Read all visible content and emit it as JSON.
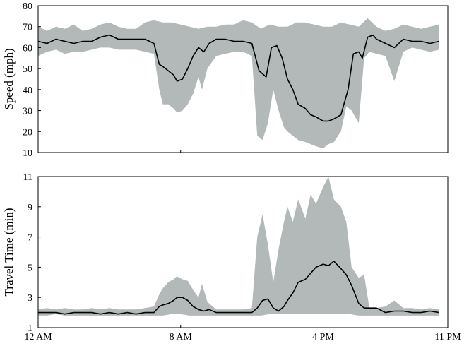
{
  "colors": {
    "band": "#b3b9b9",
    "line": "#000000",
    "axis": "#000000"
  },
  "x_tick_labels": [
    "12 AM",
    "8 AM",
    "4 PM",
    "11 PM"
  ],
  "chart_data": [
    {
      "type": "area",
      "ylabel": "Speed (mph)",
      "xlim": [
        0,
        23
      ],
      "ylim": [
        10,
        80
      ],
      "yticks": [
        10,
        20,
        30,
        40,
        50,
        60,
        70,
        80
      ],
      "grid": false,
      "series": [
        {
          "kind": "median",
          "x": [
            0,
            0.5,
            1,
            1.5,
            2,
            2.5,
            3,
            3.5,
            4,
            4.5,
            5,
            5.5,
            6,
            6.5,
            6.8,
            7,
            7.3,
            7.6,
            7.8,
            8.1,
            8.4,
            8.7,
            9,
            9.3,
            9.6,
            10,
            10.5,
            11,
            11.5,
            12,
            12.4,
            12.8,
            13.1,
            13.4,
            13.7,
            14,
            14.3,
            14.6,
            15,
            15.3,
            15.6,
            16,
            16.3,
            16.6,
            17,
            17.4,
            17.7,
            18,
            18.2,
            18.5,
            18.8,
            19,
            19.5,
            20,
            20.5,
            21,
            21.5,
            22,
            22.5
          ],
          "y": [
            63,
            62,
            64,
            63,
            62,
            63,
            63,
            65,
            66,
            64,
            64,
            64,
            64,
            62,
            52,
            51,
            49,
            47,
            44,
            45,
            50,
            56,
            60,
            58,
            62,
            64,
            64,
            63,
            63,
            62,
            49,
            46,
            60,
            61,
            55,
            45,
            40,
            33,
            31,
            28,
            27,
            25,
            25,
            26,
            28,
            40,
            57,
            58,
            55,
            65,
            66,
            64,
            62,
            60,
            64,
            63,
            63,
            62,
            63
          ]
        },
        {
          "kind": "upper",
          "x": [
            0,
            0.5,
            1,
            1.5,
            2,
            2.5,
            3,
            3.5,
            4,
            4.5,
            5,
            5.5,
            6,
            6.5,
            7,
            7.5,
            8,
            8.5,
            9,
            9.5,
            10,
            10.5,
            11,
            11.5,
            12,
            12.5,
            13,
            13.5,
            14,
            14.5,
            15,
            15.5,
            16,
            16.5,
            17,
            17.5,
            18,
            18.5,
            19,
            19.5,
            20,
            20.5,
            21,
            21.5,
            22,
            22.5
          ],
          "y": [
            70,
            68,
            70,
            69,
            71,
            68,
            69,
            71,
            72,
            70,
            69,
            69,
            72,
            73,
            72,
            72,
            71,
            70,
            69,
            70,
            70,
            71,
            71,
            73,
            72,
            69,
            71,
            70,
            70,
            72,
            72,
            71,
            70,
            70,
            72,
            71,
            70,
            74,
            70,
            68,
            69,
            71,
            70,
            69,
            70,
            71
          ]
        },
        {
          "kind": "lower",
          "x": [
            0,
            0.5,
            1,
            1.5,
            2,
            2.5,
            3,
            3.5,
            4,
            4.5,
            5,
            5.5,
            6,
            6.5,
            6.8,
            7,
            7.3,
            7.6,
            7.8,
            8.1,
            8.4,
            8.7,
            9,
            9.2,
            9.5,
            10,
            10.5,
            11,
            11.5,
            12,
            12.3,
            12.6,
            12.9,
            13.2,
            13.5,
            13.8,
            14,
            14.3,
            14.6,
            15,
            15.3,
            15.6,
            16,
            16.3,
            16.6,
            17,
            17.3,
            17.6,
            18,
            18.3,
            18.6,
            19,
            19.5,
            20,
            20.5,
            21,
            21.5,
            22,
            22.5
          ],
          "y": [
            56,
            58,
            59,
            57,
            58,
            58,
            59,
            60,
            60,
            59,
            59,
            59,
            58,
            57,
            40,
            33,
            33,
            31,
            29,
            30,
            33,
            38,
            46,
            40,
            50,
            56,
            57,
            58,
            58,
            56,
            18,
            16,
            24,
            40,
            30,
            22,
            20,
            18,
            16,
            15,
            14,
            13,
            12,
            14,
            15,
            20,
            32,
            30,
            24,
            55,
            58,
            57,
            56,
            44,
            58,
            60,
            59,
            58,
            59
          ]
        }
      ]
    },
    {
      "type": "area",
      "ylabel": "Travel Time (min)",
      "xlim": [
        0,
        23
      ],
      "ylim": [
        1,
        11
      ],
      "yticks": [
        1,
        3,
        5,
        7,
        9,
        11
      ],
      "grid": false,
      "series": [
        {
          "kind": "median",
          "x": [
            0,
            0.5,
            1,
            1.5,
            2,
            2.5,
            3,
            3.5,
            4,
            4.5,
            5,
            5.5,
            6,
            6.5,
            6.8,
            7,
            7.3,
            7.6,
            7.8,
            8.1,
            8.4,
            8.7,
            9,
            9.3,
            9.6,
            10,
            10.5,
            11,
            11.5,
            12,
            12.3,
            12.6,
            12.9,
            13.2,
            13.5,
            13.8,
            14,
            14.3,
            14.6,
            15,
            15.3,
            15.6,
            16,
            16.3,
            16.6,
            17,
            17.3,
            17.6,
            18,
            18.3,
            18.6,
            19,
            19.5,
            20,
            20.5,
            21,
            21.5,
            22,
            22.5
          ],
          "y": [
            2.0,
            2.0,
            2.0,
            1.9,
            2.0,
            2.0,
            2.0,
            1.9,
            2.0,
            1.9,
            2.0,
            1.9,
            2.0,
            2.0,
            2.4,
            2.5,
            2.6,
            2.8,
            3.0,
            3.0,
            2.8,
            2.4,
            2.2,
            2.1,
            2.2,
            2.0,
            2.0,
            2.0,
            2.0,
            2.0,
            2.3,
            2.8,
            2.9,
            2.3,
            2.1,
            2.4,
            2.8,
            3.3,
            4.0,
            4.2,
            4.6,
            5.0,
            5.2,
            5.1,
            5.4,
            4.9,
            4.5,
            3.8,
            2.6,
            2.3,
            2.3,
            2.3,
            2.0,
            2.1,
            2.1,
            2.0,
            2.0,
            2.1,
            2.0
          ]
        },
        {
          "kind": "upper",
          "x": [
            0,
            0.5,
            1,
            1.5,
            2,
            2.5,
            3,
            3.5,
            4,
            4.5,
            5,
            5.5,
            6,
            6.5,
            6.8,
            7,
            7.3,
            7.6,
            7.8,
            8.1,
            8.4,
            8.7,
            9,
            9.2,
            9.5,
            10,
            10.5,
            11,
            11.5,
            12,
            12.3,
            12.6,
            12.9,
            13.2,
            13.5,
            13.8,
            14,
            14.3,
            14.6,
            15,
            15.3,
            15.6,
            16,
            16.3,
            16.6,
            17,
            17.3,
            17.6,
            18,
            18.3,
            18.6,
            19,
            19.5,
            20,
            20.5,
            21,
            21.5,
            22,
            22.5
          ],
          "y": [
            2.2,
            2.3,
            2.2,
            2.3,
            2.2,
            2.2,
            2.3,
            2.2,
            2.3,
            2.2,
            2.2,
            2.2,
            2.3,
            2.4,
            3.2,
            3.6,
            4.0,
            4.2,
            4.4,
            4.2,
            4.1,
            3.5,
            3.0,
            3.9,
            2.7,
            2.2,
            2.2,
            2.2,
            2.2,
            2.3,
            7.0,
            8.5,
            6.5,
            4.0,
            6.2,
            8.0,
            9.0,
            8.0,
            9.5,
            8.2,
            9.8,
            9.2,
            10.3,
            11.0,
            9.5,
            9.0,
            8.0,
            5.0,
            4.3,
            4.5,
            2.3,
            2.3,
            2.4,
            2.8,
            2.3,
            2.3,
            2.2,
            2.3,
            2.2
          ]
        },
        {
          "kind": "lower",
          "x": [
            0,
            0.5,
            1,
            1.5,
            2,
            2.5,
            3,
            3.5,
            4,
            4.5,
            5,
            5.5,
            6,
            6.5,
            7,
            7.5,
            8,
            8.5,
            9,
            9.5,
            10,
            10.5,
            11,
            11.5,
            12,
            12.5,
            13,
            13.5,
            14,
            14.5,
            15,
            15.5,
            16,
            16.5,
            17,
            17.5,
            18,
            18.5,
            19,
            19.5,
            20,
            20.5,
            21,
            21.5,
            22,
            22.5
          ],
          "y": [
            1.8,
            1.8,
            1.9,
            1.8,
            1.8,
            1.8,
            1.8,
            1.8,
            1.8,
            1.8,
            1.8,
            1.8,
            1.8,
            1.8,
            1.8,
            1.9,
            1.9,
            1.8,
            1.8,
            1.8,
            1.8,
            1.8,
            1.8,
            1.8,
            1.8,
            1.8,
            1.9,
            1.9,
            1.9,
            1.9,
            1.9,
            1.9,
            1.9,
            1.9,
            1.9,
            1.9,
            1.8,
            1.8,
            1.8,
            1.8,
            1.8,
            1.8,
            1.8,
            1.8,
            1.8,
            1.8
          ]
        }
      ]
    }
  ]
}
